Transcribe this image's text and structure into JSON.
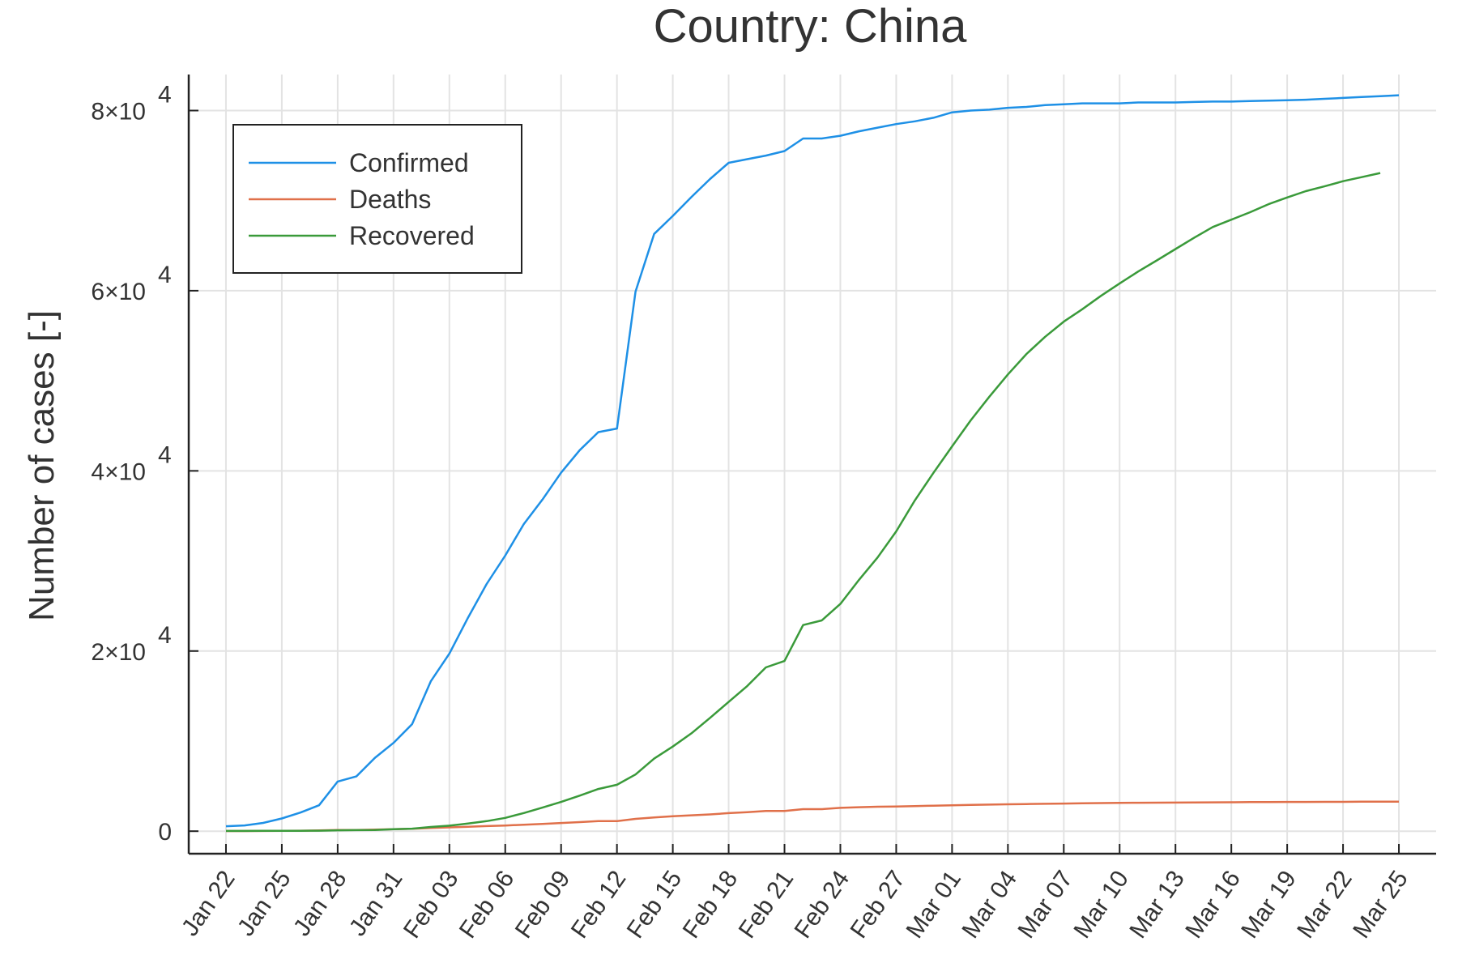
{
  "chart_data": {
    "type": "line",
    "title": "Country: China",
    "xlabel": "",
    "ylabel": "Number of cases [-]",
    "x_tick_labels": [
      "Jan 22",
      "Jan 25",
      "Jan 28",
      "Jan 31",
      "Feb 03",
      "Feb 06",
      "Feb 09",
      "Feb 12",
      "Feb 15",
      "Feb 18",
      "Feb 21",
      "Feb 24",
      "Feb 27",
      "Mar 01",
      "Mar 04",
      "Mar 07",
      "Mar 10",
      "Mar 13",
      "Mar 16",
      "Mar 19",
      "Mar 22",
      "Mar 25"
    ],
    "y_ticks": [
      {
        "value": 0,
        "mantissa": "0",
        "exponent": ""
      },
      {
        "value": 20000,
        "mantissa": "2×10",
        "exponent": "4"
      },
      {
        "value": 40000,
        "mantissa": "4×10",
        "exponent": "4"
      },
      {
        "value": 60000,
        "mantissa": "6×10",
        "exponent": "4"
      },
      {
        "value": 80000,
        "mantissa": "8×10",
        "exponent": "4"
      }
    ],
    "xlim": [
      "2020-01-20",
      "2020-03-27"
    ],
    "ylim": [
      -2500,
      84000
    ],
    "grid": true,
    "legend_position": "top-left",
    "series": [
      {
        "name": "Confirmed",
        "color": "#1e90e6",
        "x": [
          "2020-01-22",
          "2020-01-23",
          "2020-01-24",
          "2020-01-25",
          "2020-01-26",
          "2020-01-27",
          "2020-01-28",
          "2020-01-29",
          "2020-01-30",
          "2020-01-31",
          "2020-02-01",
          "2020-02-02",
          "2020-02-03",
          "2020-02-04",
          "2020-02-05",
          "2020-02-06",
          "2020-02-07",
          "2020-02-08",
          "2020-02-09",
          "2020-02-10",
          "2020-02-11",
          "2020-02-12",
          "2020-02-13",
          "2020-02-14",
          "2020-02-15",
          "2020-02-16",
          "2020-02-17",
          "2020-02-18",
          "2020-02-19",
          "2020-02-20",
          "2020-02-21",
          "2020-02-22",
          "2020-02-23",
          "2020-02-24",
          "2020-02-25",
          "2020-02-26",
          "2020-02-27",
          "2020-02-28",
          "2020-02-29",
          "2020-03-01",
          "2020-03-02",
          "2020-03-03",
          "2020-03-04",
          "2020-03-05",
          "2020-03-06",
          "2020-03-07",
          "2020-03-08",
          "2020-03-09",
          "2020-03-10",
          "2020-03-11",
          "2020-03-12",
          "2020-03-13",
          "2020-03-14",
          "2020-03-15",
          "2020-03-16",
          "2020-03-17",
          "2020-03-18",
          "2020-03-19",
          "2020-03-20",
          "2020-03-21",
          "2020-03-22",
          "2020-03-23",
          "2020-03-24",
          "2020-03-25"
        ],
        "values": [
          550,
          640,
          920,
          1410,
          2070,
          2880,
          5510,
          6080,
          8150,
          9800,
          11890,
          16630,
          19720,
          23700,
          27440,
          30590,
          34100,
          36810,
          39800,
          42300,
          44300,
          44700,
          59900,
          66300,
          68300,
          70400,
          72400,
          74200,
          74600,
          75000,
          75500,
          76900,
          76900,
          77200,
          77700,
          78100,
          78500,
          78800,
          79200,
          79800,
          80000,
          80100,
          80300,
          80400,
          80600,
          80700,
          80800,
          80800,
          80800,
          80900,
          80900,
          80900,
          80950,
          81000,
          81000,
          81050,
          81100,
          81150,
          81200,
          81300,
          81400,
          81500,
          81600,
          81700
        ]
      },
      {
        "name": "Deaths",
        "color": "#e0704a",
        "x": [
          "2020-01-22",
          "2020-01-23",
          "2020-01-24",
          "2020-01-25",
          "2020-01-26",
          "2020-01-27",
          "2020-01-28",
          "2020-01-29",
          "2020-01-30",
          "2020-01-31",
          "2020-02-01",
          "2020-02-02",
          "2020-02-03",
          "2020-02-04",
          "2020-02-05",
          "2020-02-06",
          "2020-02-07",
          "2020-02-08",
          "2020-02-09",
          "2020-02-10",
          "2020-02-11",
          "2020-02-12",
          "2020-02-13",
          "2020-02-14",
          "2020-02-15",
          "2020-02-16",
          "2020-02-17",
          "2020-02-18",
          "2020-02-19",
          "2020-02-20",
          "2020-02-21",
          "2020-02-22",
          "2020-02-23",
          "2020-02-24",
          "2020-02-25",
          "2020-02-26",
          "2020-02-27",
          "2020-02-28",
          "2020-02-29",
          "2020-03-01",
          "2020-03-02",
          "2020-03-03",
          "2020-03-04",
          "2020-03-05",
          "2020-03-06",
          "2020-03-07",
          "2020-03-08",
          "2020-03-09",
          "2020-03-10",
          "2020-03-11",
          "2020-03-12",
          "2020-03-13",
          "2020-03-14",
          "2020-03-15",
          "2020-03-16",
          "2020-03-17",
          "2020-03-18",
          "2020-03-19",
          "2020-03-20",
          "2020-03-21",
          "2020-03-22",
          "2020-03-23",
          "2020-03-24",
          "2020-03-25"
        ],
        "values": [
          17,
          18,
          26,
          42,
          56,
          82,
          131,
          133,
          171,
          213,
          259,
          361,
          425,
          490,
          562,
          632,
          717,
          804,
          904,
          1011,
          1111,
          1116,
          1368,
          1520,
          1662,
          1765,
          1863,
          2002,
          2114,
          2236,
          2236,
          2441,
          2443,
          2593,
          2663,
          2715,
          2744,
          2788,
          2835,
          2870,
          2912,
          2945,
          2981,
          3013,
          3042,
          3070,
          3097,
          3119,
          3136,
          3158,
          3169,
          3176,
          3189,
          3199,
          3213,
          3226,
          3237,
          3245,
          3249,
          3253,
          3259,
          3274,
          3274,
          3281
        ]
      },
      {
        "name": "Recovered",
        "color": "#3a9a3a",
        "x": [
          "2020-01-22",
          "2020-01-23",
          "2020-01-24",
          "2020-01-25",
          "2020-01-26",
          "2020-01-27",
          "2020-01-28",
          "2020-01-29",
          "2020-01-30",
          "2020-01-31",
          "2020-02-01",
          "2020-02-02",
          "2020-02-03",
          "2020-02-04",
          "2020-02-05",
          "2020-02-06",
          "2020-02-07",
          "2020-02-08",
          "2020-02-09",
          "2020-02-10",
          "2020-02-11",
          "2020-02-12",
          "2020-02-13",
          "2020-02-14",
          "2020-02-15",
          "2020-02-16",
          "2020-02-17",
          "2020-02-18",
          "2020-02-19",
          "2020-02-20",
          "2020-02-21",
          "2020-02-22",
          "2020-02-23",
          "2020-02-24",
          "2020-02-25",
          "2020-02-26",
          "2020-02-27",
          "2020-02-28",
          "2020-02-29",
          "2020-03-01",
          "2020-03-02",
          "2020-03-03",
          "2020-03-04",
          "2020-03-05",
          "2020-03-06",
          "2020-03-07",
          "2020-03-08",
          "2020-03-09",
          "2020-03-10",
          "2020-03-11",
          "2020-03-12",
          "2020-03-13",
          "2020-03-14",
          "2020-03-15",
          "2020-03-16",
          "2020-03-17",
          "2020-03-18",
          "2020-03-19",
          "2020-03-20",
          "2020-03-21",
          "2020-03-22",
          "2020-03-23",
          "2020-03-24"
        ],
        "values": [
          28,
          30,
          36,
          39,
          49,
          58,
          101,
          120,
          135,
          214,
          275,
          463,
          614,
          843,
          1115,
          1477,
          2011,
          2616,
          3244,
          3946,
          4683,
          5150,
          6295,
          8058,
          9395,
          10865,
          12583,
          14352,
          16121,
          18177,
          18890,
          22886,
          23394,
          25227,
          27905,
          30384,
          33277,
          36711,
          39782,
          42716,
          45602,
          48228,
          50701,
          52979,
          54883,
          56567,
          57948,
          59432,
          60811,
          62134,
          63361,
          64621,
          65873,
          67067,
          67890,
          68702,
          69608,
          70349,
          71049,
          71584,
          72160,
          72604,
          73062
        ]
      }
    ]
  }
}
